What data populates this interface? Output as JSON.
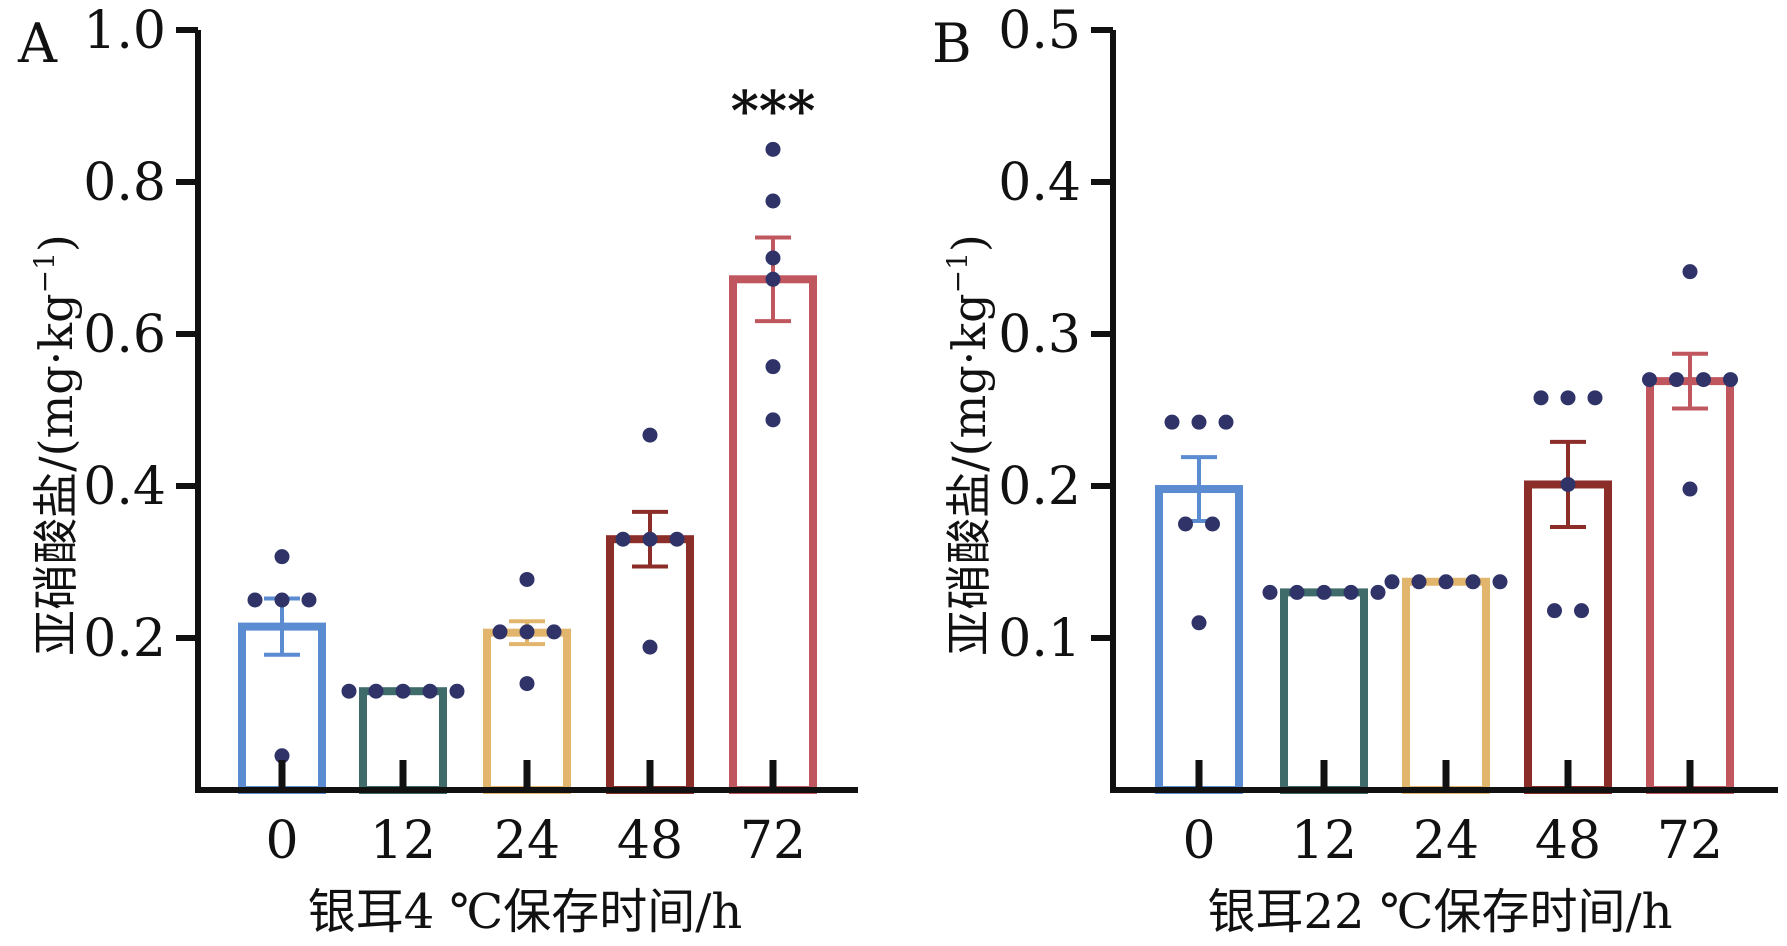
{
  "chart_data": [
    {
      "type": "bar",
      "panel_label": "A",
      "categories": [
        "0",
        "12",
        "24",
        "48",
        "72"
      ],
      "values": [
        0.215,
        0.13,
        0.207,
        0.33,
        0.672
      ],
      "errors": [
        0.037,
        0.0,
        0.015,
        0.036,
        0.055
      ],
      "points": [
        [
          0.307,
          0.25,
          0.25,
          0.25,
          0.045
        ],
        [
          0.13,
          0.13,
          0.13,
          0.13,
          0.13
        ],
        [
          0.277,
          0.208,
          0.208,
          0.208,
          0.14
        ],
        [
          0.467,
          0.33,
          0.33,
          0.33,
          0.188
        ],
        [
          0.843,
          0.775,
          0.7,
          0.672,
          0.557,
          0.487
        ]
      ],
      "bar_colors": [
        "#5b8bd0",
        "#3f6b6b",
        "#e2b56d",
        "#8b2e2a",
        "#c0575f"
      ],
      "point_color": "#2f3368",
      "annotations": [
        {
          "category": "72",
          "text": "***"
        }
      ],
      "ylabel": "亚硝酸盐/(mg·kg",
      "ylabel_sup": "−1",
      "ylabel_close": ")",
      "xlabel": "银耳4 ℃保存时间/h",
      "ylim": [
        0,
        1.0
      ],
      "yticks": [
        "0.2",
        "0.4",
        "0.6",
        "0.8",
        "1.0"
      ],
      "ytick_values": [
        0.2,
        0.4,
        0.6,
        0.8,
        1.0
      ]
    },
    {
      "type": "bar",
      "panel_label": "B",
      "categories": [
        "0",
        "12",
        "24",
        "48",
        "72"
      ],
      "values": [
        0.198,
        0.13,
        0.137,
        0.201,
        0.269
      ],
      "errors": [
        0.021,
        0.0,
        0.0,
        0.028,
        0.018
      ],
      "points": [
        [
          0.242,
          0.242,
          0.242,
          0.175,
          0.175,
          0.11
        ],
        [
          0.13,
          0.13,
          0.13,
          0.13,
          0.13
        ],
        [
          0.137,
          0.137,
          0.137,
          0.137,
          0.137
        ],
        [
          0.258,
          0.258,
          0.258,
          0.201,
          0.118,
          0.118
        ],
        [
          0.341,
          0.27,
          0.27,
          0.27,
          0.27,
          0.198
        ]
      ],
      "bar_colors": [
        "#5b8bd0",
        "#3f6b6b",
        "#e2b56d",
        "#8b2e2a",
        "#c0575f"
      ],
      "point_color": "#2f3368",
      "annotations": [],
      "ylabel": "亚硝酸盐/(mg·kg",
      "ylabel_sup": "−1",
      "ylabel_close": ")",
      "xlabel": "银耳22 ℃保存时间/h",
      "ylim": [
        0,
        0.5
      ],
      "yticks": [
        "0.1",
        "0.2",
        "0.3",
        "0.4",
        "0.5"
      ],
      "ytick_values": [
        0.1,
        0.2,
        0.3,
        0.4,
        0.5
      ]
    }
  ]
}
